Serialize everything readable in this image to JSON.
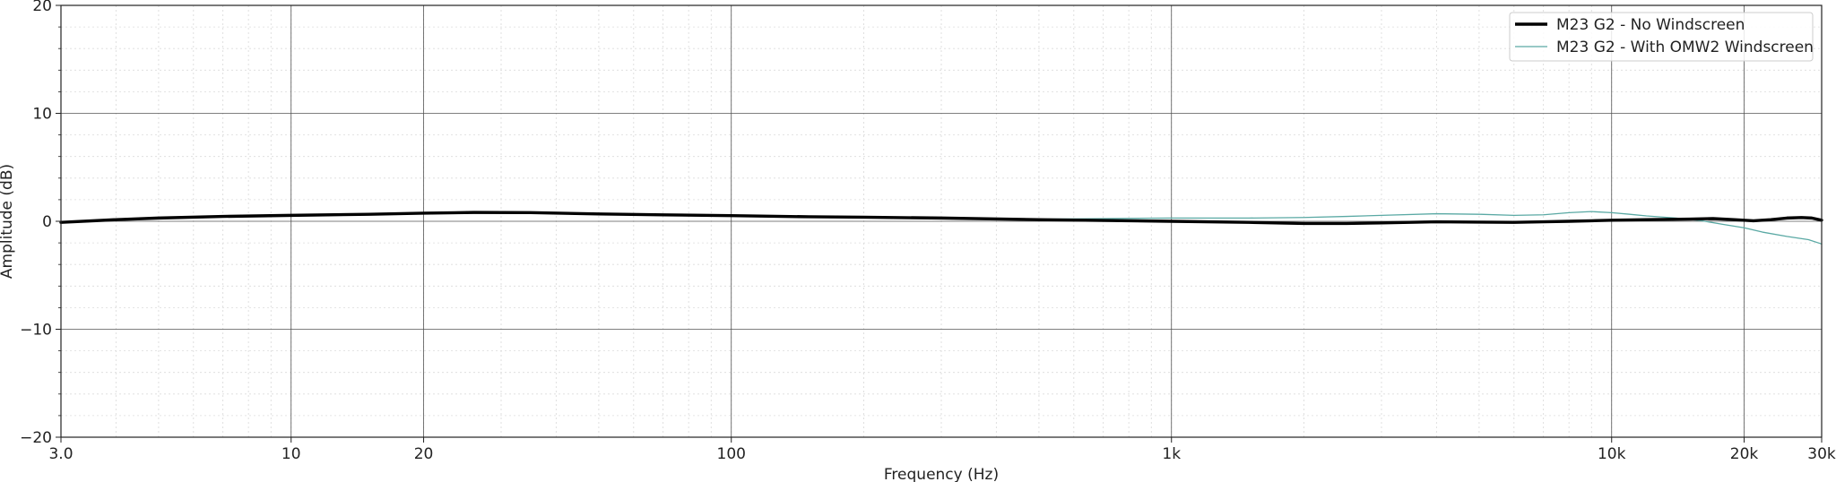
{
  "chart_data": {
    "type": "line",
    "title": "",
    "xlabel": "Frequency (Hz)",
    "ylabel": "Amplitude (dB)",
    "xscale": "log",
    "xlim": [
      3,
      30000
    ],
    "ylim": [
      -20,
      20
    ],
    "grid": true,
    "legend_position": "top-right",
    "x_ticks": [
      {
        "value": 3,
        "label": "3.0"
      },
      {
        "value": 10,
        "label": "10"
      },
      {
        "value": 20,
        "label": "20"
      },
      {
        "value": 100,
        "label": "100"
      },
      {
        "value": 1000,
        "label": "1k"
      },
      {
        "value": 10000,
        "label": "10k"
      },
      {
        "value": 20000,
        "label": "20k"
      },
      {
        "value": 30000,
        "label": "30k"
      }
    ],
    "y_ticks": [
      {
        "value": 20,
        "label": "20"
      },
      {
        "value": 10,
        "label": "10"
      },
      {
        "value": 0,
        "label": "0"
      },
      {
        "value": -10,
        "label": "−10"
      },
      {
        "value": -20,
        "label": "−20"
      }
    ],
    "series": [
      {
        "name": "M23 G2 - No Windscreen",
        "color": "#000000",
        "points": [
          [
            3,
            -0.1
          ],
          [
            4,
            0.15
          ],
          [
            5,
            0.3
          ],
          [
            7,
            0.45
          ],
          [
            10,
            0.55
          ],
          [
            15,
            0.65
          ],
          [
            20,
            0.75
          ],
          [
            26,
            0.82
          ],
          [
            35,
            0.8
          ],
          [
            50,
            0.68
          ],
          [
            70,
            0.6
          ],
          [
            100,
            0.52
          ],
          [
            150,
            0.42
          ],
          [
            200,
            0.38
          ],
          [
            300,
            0.3
          ],
          [
            500,
            0.15
          ],
          [
            700,
            0.08
          ],
          [
            1000,
            0.0
          ],
          [
            1500,
            -0.1
          ],
          [
            2000,
            -0.2
          ],
          [
            2500,
            -0.2
          ],
          [
            3000,
            -0.15
          ],
          [
            4000,
            -0.05
          ],
          [
            5000,
            -0.08
          ],
          [
            6000,
            -0.1
          ],
          [
            7000,
            -0.05
          ],
          [
            8000,
            0.0
          ],
          [
            9000,
            0.05
          ],
          [
            10000,
            0.1
          ],
          [
            12000,
            0.15
          ],
          [
            15000,
            0.2
          ],
          [
            17000,
            0.25
          ],
          [
            19000,
            0.15
          ],
          [
            21000,
            0.05
          ],
          [
            23000,
            0.15
          ],
          [
            25000,
            0.3
          ],
          [
            27000,
            0.35
          ],
          [
            28500,
            0.3
          ],
          [
            30000,
            0.1
          ]
        ]
      },
      {
        "name": "M23 G2 - With OMW2 Windscreen",
        "color": "#5aa9a4",
        "points": [
          [
            300,
            0.3
          ],
          [
            500,
            0.2
          ],
          [
            700,
            0.25
          ],
          [
            1000,
            0.3
          ],
          [
            1500,
            0.3
          ],
          [
            2000,
            0.35
          ],
          [
            2500,
            0.45
          ],
          [
            3000,
            0.55
          ],
          [
            4000,
            0.7
          ],
          [
            5000,
            0.65
          ],
          [
            6000,
            0.55
          ],
          [
            7000,
            0.6
          ],
          [
            8000,
            0.8
          ],
          [
            9000,
            0.9
          ],
          [
            10000,
            0.8
          ],
          [
            11000,
            0.65
          ],
          [
            12000,
            0.5
          ],
          [
            14000,
            0.3
          ],
          [
            16000,
            0.05
          ],
          [
            18000,
            -0.3
          ],
          [
            20000,
            -0.6
          ],
          [
            22000,
            -1.0
          ],
          [
            25000,
            -1.4
          ],
          [
            28000,
            -1.7
          ],
          [
            30000,
            -2.1
          ]
        ]
      }
    ]
  }
}
